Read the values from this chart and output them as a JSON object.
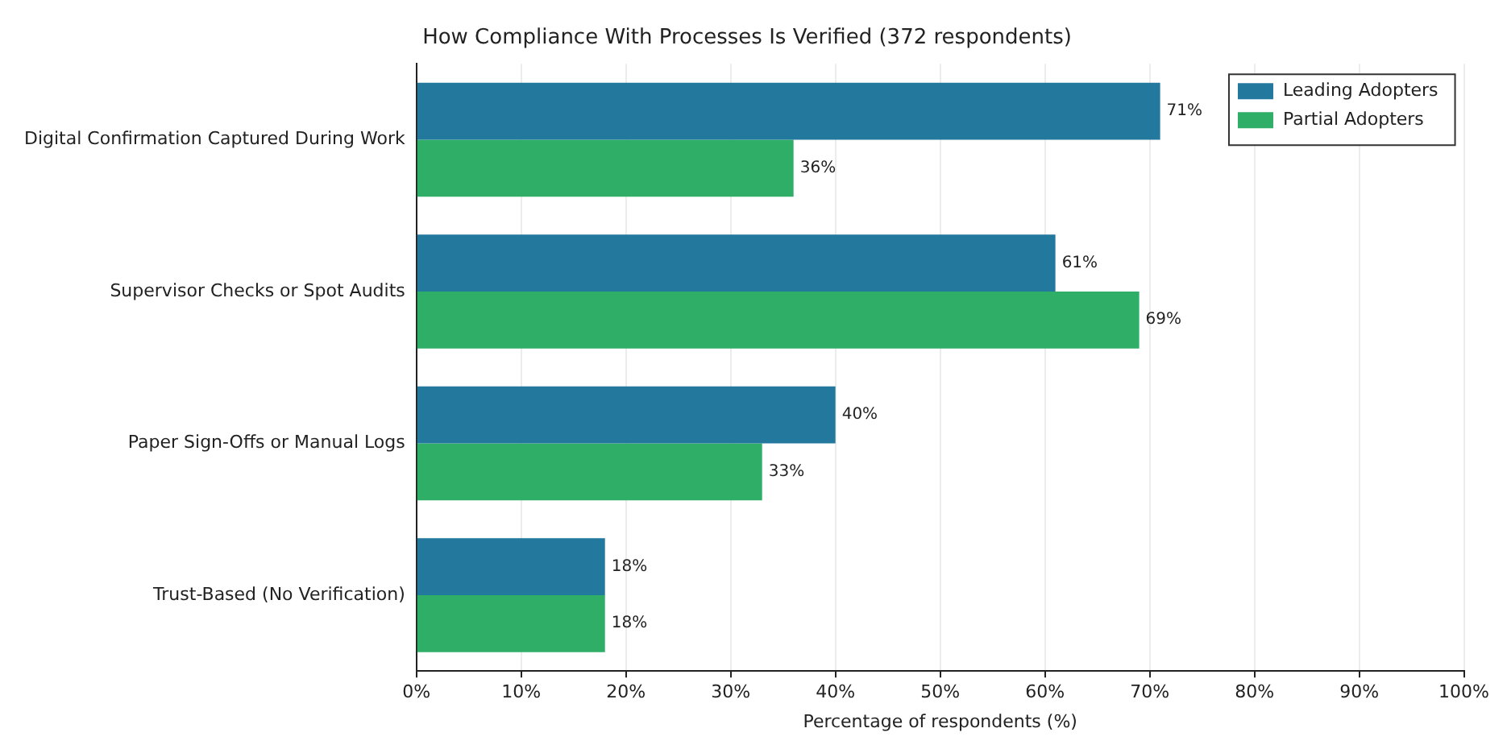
{
  "chart_data": {
    "type": "bar",
    "orientation": "horizontal",
    "title": "How Compliance With Processes Is Verified (372 respondents)",
    "xlabel": "Percentage of respondents (%)",
    "categories": [
      "Digital Confirmation Captured During Work",
      "Supervisor Checks or Spot Audits",
      "Paper Sign-Offs or Manual Logs",
      "Trust-Based (No Verification)"
    ],
    "series": [
      {
        "name": "Leading Adopters",
        "color": "#23789e",
        "values": [
          71,
          61,
          40,
          18
        ],
        "value_labels": [
          "71%",
          "61%",
          "40%",
          "18%"
        ]
      },
      {
        "name": "Partial Adopters",
        "color": "#2eae66",
        "values": [
          36,
          69,
          33,
          18
        ],
        "value_labels": [
          "36%",
          "69%",
          "33%",
          "18%"
        ]
      }
    ],
    "xlim": [
      0,
      100
    ],
    "xticks": [
      {
        "value": 0,
        "label": "0%"
      },
      {
        "value": 10,
        "label": "10%"
      },
      {
        "value": 20,
        "label": "20%"
      },
      {
        "value": 30,
        "label": "30%"
      },
      {
        "value": 40,
        "label": "40%"
      },
      {
        "value": 50,
        "label": "50%"
      },
      {
        "value": 60,
        "label": "60%"
      },
      {
        "value": 70,
        "label": "70%"
      },
      {
        "value": 80,
        "label": "80%"
      },
      {
        "value": 90,
        "label": "90%"
      },
      {
        "value": 100,
        "label": "100%"
      }
    ],
    "grid": "x",
    "legend": "top right"
  }
}
